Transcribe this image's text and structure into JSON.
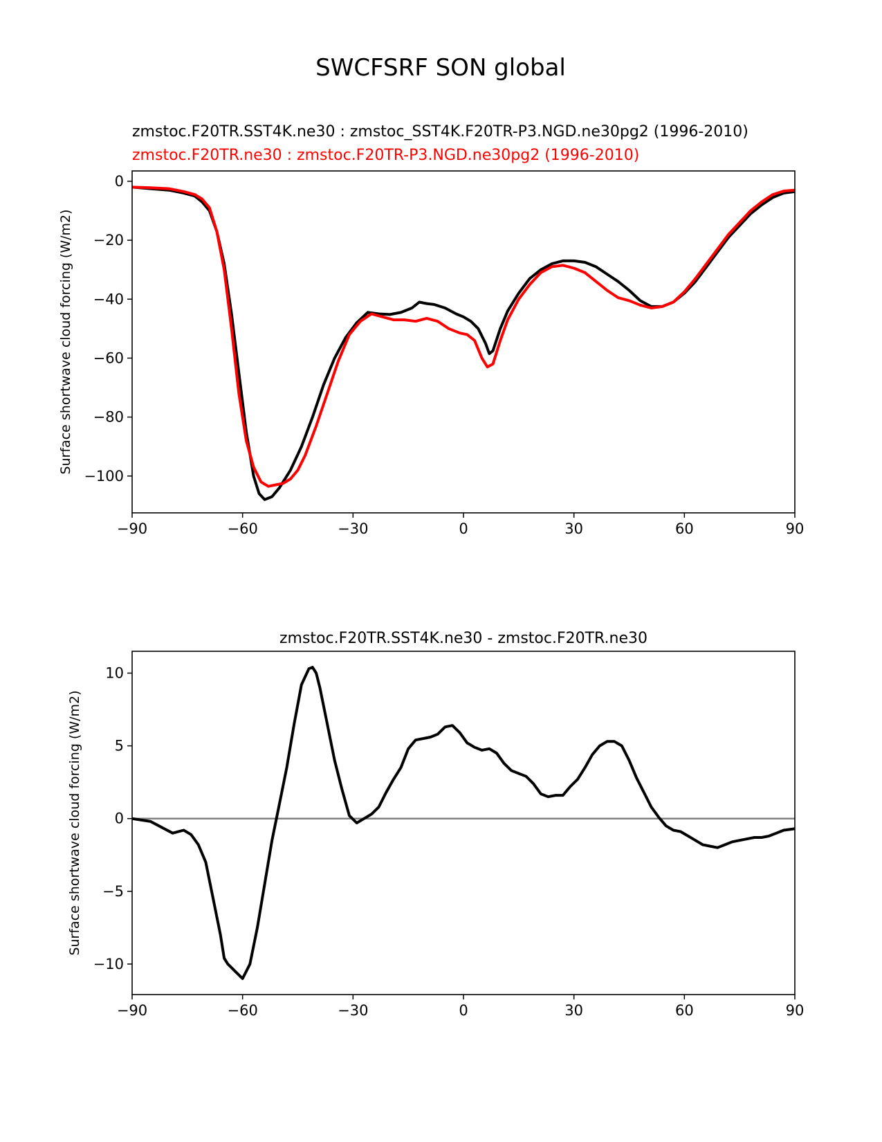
{
  "figure_title": "SWCFSRF SON global",
  "chart_data": [
    {
      "type": "line",
      "title_lines": [
        {
          "text": "zmstoc.F20TR.SST4K.ne30 : zmstoc_SST4K.F20TR-P3.NGD.ne30pg2 (1996-2010)",
          "color": "#000000"
        },
        {
          "text": "zmstoc.F20TR.ne30 : zmstoc.F20TR-P3.NGD.ne30pg2 (1996-2010)",
          "color": "#ff0000"
        }
      ],
      "xlabel": "",
      "ylabel": "Surface shortwave cloud forcing (W/m2)",
      "xlim": [
        -90,
        90
      ],
      "ylim": [
        -112.5,
        3.5
      ],
      "xticks": [
        -90,
        -60,
        -30,
        0,
        30,
        60,
        90
      ],
      "xtick_labels": [
        "−90",
        "−60",
        "−30",
        "0",
        "30",
        "60",
        "90"
      ],
      "yticks": [
        0,
        -20,
        -40,
        -60,
        -80,
        -100
      ],
      "ytick_labels": [
        "0",
        "−20",
        "−40",
        "−60",
        "−80",
        "−100"
      ],
      "series": [
        {
          "name": "zmstoc.F20TR.SST4K.ne30",
          "color": "#000000",
          "x": [
            -90,
            -85,
            -80,
            -76,
            -73,
            -71,
            -69,
            -67,
            -65,
            -63,
            -61,
            -59,
            -57,
            -55.5,
            -54,
            -52,
            -50,
            -47,
            -44,
            -41,
            -38,
            -35,
            -32,
            -29,
            -26,
            -23,
            -20,
            -17,
            -14,
            -12,
            -10,
            -8,
            -5,
            -2,
            0,
            2,
            4,
            6,
            7,
            8,
            10,
            12,
            15,
            18,
            21,
            24,
            27,
            30,
            33,
            36,
            39,
            42,
            45,
            48,
            51,
            54,
            57,
            60,
            63,
            66,
            69,
            72,
            75,
            78,
            81,
            84,
            87,
            90
          ],
          "y": [
            -2,
            -2.5,
            -3,
            -4,
            -5,
            -7,
            -10,
            -17,
            -28,
            -45,
            -65,
            -85,
            -100,
            -106,
            -108,
            -107,
            -104,
            -98,
            -90,
            -80,
            -69,
            -60,
            -53,
            -48,
            -44.5,
            -45,
            -45.2,
            -44.5,
            -43,
            -41,
            -41.5,
            -41.8,
            -43,
            -45,
            -46,
            -47.5,
            -50,
            -55,
            -58.5,
            -57.5,
            -50,
            -44,
            -38,
            -33,
            -30,
            -28,
            -27,
            -27,
            -27.5,
            -29,
            -31.5,
            -34,
            -37,
            -40.5,
            -42.5,
            -42.5,
            -41,
            -38,
            -34,
            -29,
            -24,
            -19,
            -15,
            -11,
            -8,
            -5.5,
            -4,
            -3.5
          ]
        },
        {
          "name": "zmstoc.F20TR.ne30",
          "color": "#ff0000",
          "x": [
            -90,
            -85,
            -80,
            -76,
            -73,
            -71,
            -69,
            -67,
            -65,
            -63,
            -61,
            -59,
            -57,
            -55,
            -53,
            -51,
            -49,
            -47,
            -45,
            -43,
            -40,
            -37,
            -34,
            -31,
            -28,
            -25,
            -22,
            -19,
            -16,
            -13,
            -10,
            -7,
            -4,
            -1,
            1,
            3,
            5,
            6.5,
            8,
            10,
            12,
            15,
            18,
            21,
            24,
            27,
            30,
            33,
            36,
            39,
            42,
            45,
            48,
            51,
            54,
            57,
            60,
            63,
            66,
            69,
            72,
            75,
            78,
            81,
            84,
            87,
            90
          ],
          "y": [
            -2,
            -2.2,
            -2.5,
            -3.5,
            -4.5,
            -6,
            -9,
            -17,
            -30,
            -50,
            -72,
            -88,
            -97,
            -102,
            -103.5,
            -103,
            -102.5,
            -101,
            -98,
            -93,
            -83,
            -72,
            -61,
            -52,
            -47.5,
            -45,
            -46,
            -47,
            -47,
            -47.5,
            -46.5,
            -47.5,
            -50,
            -51.5,
            -52,
            -54,
            -60,
            -63,
            -62,
            -54,
            -47,
            -40,
            -35,
            -31,
            -29,
            -28.5,
            -29.5,
            -31,
            -34,
            -37,
            -39.5,
            -40.5,
            -42,
            -43,
            -42.5,
            -41,
            -37.5,
            -33,
            -28,
            -23,
            -18,
            -14,
            -10,
            -7,
            -4.5,
            -3.3,
            -3
          ]
        }
      ]
    },
    {
      "type": "line",
      "title_lines": [
        {
          "text": "zmstoc.F20TR.SST4K.ne30 - zmstoc.F20TR.ne30",
          "color": "#000000"
        }
      ],
      "xlabel": "",
      "ylabel": "Surface shortwave cloud forcing (W/m2)",
      "xlim": [
        -90,
        90
      ],
      "ylim": [
        -12.1,
        11.5
      ],
      "xticks": [
        -90,
        -60,
        -30,
        0,
        30,
        60,
        90
      ],
      "xtick_labels": [
        "−90",
        "−60",
        "−30",
        "0",
        "30",
        "60",
        "90"
      ],
      "yticks": [
        10,
        5,
        0,
        -5,
        -10
      ],
      "ytick_labels": [
        "10",
        "5",
        "0",
        "−5",
        "−10"
      ],
      "reference_line": {
        "y": 0,
        "color": "#808080"
      },
      "series": [
        {
          "name": "zmstoc.F20TR.SST4K.ne30 - zmstoc.F20TR.ne30",
          "color": "#000000",
          "x": [
            -90,
            -85,
            -82,
            -79,
            -76,
            -74,
            -72,
            -70,
            -68,
            -66,
            -65,
            -64,
            -62,
            -60,
            -58,
            -56,
            -54,
            -52,
            -50,
            -48,
            -46,
            -44,
            -42,
            -41,
            -40,
            -39,
            -37,
            -35,
            -33,
            -31,
            -29,
            -27,
            -25,
            -23,
            -21,
            -19,
            -17,
            -15,
            -13,
            -11,
            -9,
            -7,
            -5,
            -3,
            -1,
            1,
            3,
            5,
            7,
            9,
            11,
            13,
            15,
            17,
            19,
            21,
            23,
            25,
            27,
            29,
            31,
            33,
            35,
            37,
            39,
            41,
            43,
            45,
            47,
            49,
            51,
            53,
            55,
            57,
            59,
            61,
            63,
            65,
            67,
            69,
            71,
            73,
            75,
            77,
            79,
            81,
            83,
            85,
            87,
            90
          ],
          "y": [
            0,
            -0.2,
            -0.6,
            -1,
            -0.8,
            -1.1,
            -1.8,
            -3,
            -5.5,
            -8,
            -9.6,
            -10,
            -10.5,
            -11,
            -10,
            -7.5,
            -4.5,
            -1.5,
            1,
            3.5,
            6.5,
            9.2,
            10.3,
            10.4,
            10,
            9,
            6.5,
            4,
            2,
            0.2,
            -0.3,
            0,
            0.3,
            0.8,
            1.8,
            2.7,
            3.5,
            4.8,
            5.4,
            5.5,
            5.6,
            5.8,
            6.3,
            6.4,
            5.9,
            5.2,
            4.9,
            4.7,
            4.8,
            4.5,
            3.8,
            3.3,
            3.1,
            2.9,
            2.4,
            1.7,
            1.5,
            1.6,
            1.6,
            2.2,
            2.7,
            3.5,
            4.4,
            5,
            5.3,
            5.3,
            5,
            4,
            2.8,
            1.8,
            0.8,
            0.1,
            -0.5,
            -0.8,
            -0.9,
            -1.2,
            -1.5,
            -1.8,
            -1.9,
            -2,
            -1.8,
            -1.6,
            -1.5,
            -1.4,
            -1.3,
            -1.3,
            -1.2,
            -1,
            -0.8,
            -0.7
          ]
        }
      ]
    }
  ]
}
